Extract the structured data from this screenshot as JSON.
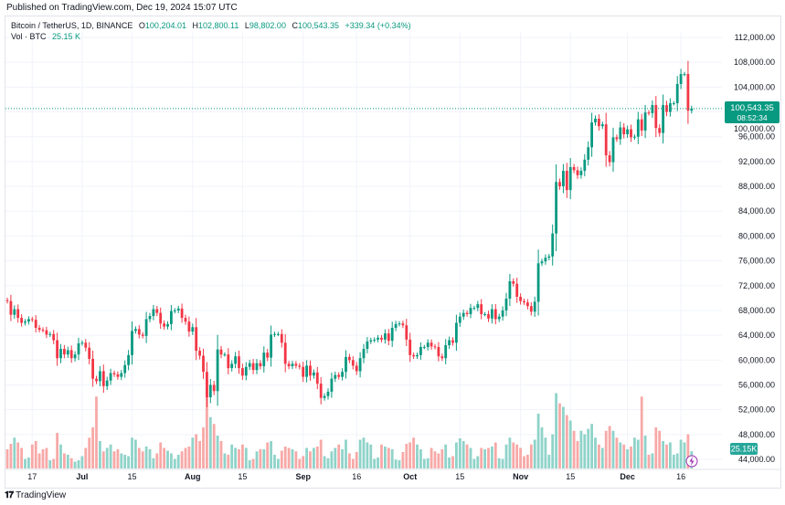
{
  "published": "Published on TradingView.com, Dec 19, 2024 15:07 UTC",
  "legend": {
    "symbol": "Bitcoin / TetherUS, 1D, BINANCE",
    "o_label": "O",
    "o": "100,204.01",
    "h_label": "H",
    "h": "102,800.11",
    "l_label": "L",
    "l": "98,802.00",
    "c_label": "C",
    "c": "100,543.35",
    "change": "+339.34 (+0.34%)",
    "vol_label": "Vol · BTC",
    "vol": "25.15 K"
  },
  "price_label": {
    "price": "100,543.35",
    "countdown": "08:52:34"
  },
  "volume_label": "25.15K",
  "footer_logo": "TradingView",
  "colors": {
    "up": "#089981",
    "down": "#f23645",
    "vol_up": "#8fd3c9",
    "vol_down": "#f7a9a7",
    "grid": "#f0f3fa",
    "alert": "#9c27b0"
  },
  "chart_data": {
    "type": "candlestick",
    "symbol": "BTCUSDT",
    "interval": "1D",
    "x_start": "2024-06-10",
    "ylim": [
      44000,
      112000
    ],
    "y_ticks": [
      "112,000.00",
      "108,000.00",
      "104,000.00",
      "100,000.00",
      "96,000.00",
      "92,000.00",
      "88,000.00",
      "84,000.00",
      "80,000.00",
      "76,000.00",
      "72,000.00",
      "68,000.00",
      "64,000.00",
      "60,000.00",
      "56,000.00",
      "52,000.00",
      "48,000.00",
      "44,000.00"
    ],
    "x_ticks": [
      {
        "label": "17",
        "date": "2024-06-17"
      },
      {
        "label": "Jul",
        "date": "2024-07-01"
      },
      {
        "label": "15",
        "date": "2024-07-15"
      },
      {
        "label": "Aug",
        "date": "2024-08-01"
      },
      {
        "label": "15",
        "date": "2024-08-15"
      },
      {
        "label": "Sep",
        "date": "2024-09-01"
      },
      {
        "label": "16",
        "date": "2024-09-16"
      },
      {
        "label": "Oct",
        "date": "2024-10-01"
      },
      {
        "label": "15",
        "date": "2024-10-15"
      },
      {
        "label": "Nov",
        "date": "2024-11-01"
      },
      {
        "label": "15",
        "date": "2024-11-15"
      },
      {
        "label": "Dec",
        "date": "2024-12-01"
      },
      {
        "label": "16",
        "date": "2024-12-16"
      }
    ],
    "grid": true,
    "first_open": 69650,
    "last_price": 100543.35,
    "close": [
      69500,
      67300,
      68200,
      66800,
      66000,
      66200,
      66600,
      66500,
      65200,
      64900,
      64800,
      64100,
      64200,
      63200,
      60300,
      61800,
      60900,
      61600,
      60300,
      60900,
      62700,
      62800,
      62000,
      60200,
      57000,
      56600,
      58200,
      55800,
      56700,
      57900,
      57700,
      57300,
      57900,
      59200,
      60800,
      64700,
      65000,
      64100,
      63900,
      66600,
      67100,
      68200,
      67600,
      65900,
      65400,
      65800,
      67900,
      68000,
      68300,
      66800,
      66200,
      64600,
      65300,
      61500,
      60700,
      58100,
      54000,
      56000,
      55000,
      61700,
      60900,
      60900,
      58700,
      59400,
      60600,
      58700,
      57500,
      58900,
      59500,
      58400,
      59500,
      59000,
      61200,
      60400,
      64100,
      64200,
      64200,
      62800,
      59400,
      59000,
      59400,
      59100,
      58900,
      57300,
      59100,
      57500,
      58000,
      56200,
      53900,
      54200,
      54900,
      57000,
      57600,
      57300,
      58100,
      60500,
      60000,
      59100,
      58200,
      60300,
      61800,
      63000,
      63200,
      63300,
      63600,
      63300,
      64300,
      63100,
      65200,
      65800,
      65900,
      65600,
      63300,
      60800,
      60600,
      60800,
      62100,
      62100,
      62800,
      62200,
      62100,
      60600,
      60300,
      62400,
      63200,
      62800,
      66000,
      67000,
      67600,
      67400,
      68400,
      68400,
      69000,
      67400,
      67400,
      66700,
      68200,
      66600,
      67000,
      68000,
      69900,
      72700,
      72300,
      70200,
      69500,
      69300,
      68700,
      67800,
      69400,
      75600,
      75900,
      76500,
      76700,
      80400,
      88700,
      88000,
      90500,
      87400,
      91100,
      90600,
      89800,
      90500,
      92300,
      94300,
      98300,
      98900,
      97700,
      98000,
      93000,
      91900,
      95900,
      95600,
      97500,
      96400,
      97200,
      95900,
      96000,
      98800,
      97000,
      99900,
      99800,
      101100,
      97400,
      96600,
      101100,
      100000,
      101400,
      101400,
      104500,
      106100,
      106100,
      100200,
      100543.35
    ],
    "volume_k": [
      28,
      36,
      45,
      38,
      30,
      14,
      16,
      35,
      40,
      22,
      28,
      30,
      12,
      14,
      52,
      35,
      22,
      20,
      15,
      10,
      12,
      18,
      30,
      45,
      60,
      105,
      40,
      25,
      30,
      35,
      25,
      28,
      22,
      20,
      18,
      45,
      42,
      30,
      25,
      32,
      28,
      15,
      22,
      38,
      30,
      26,
      22,
      14,
      20,
      25,
      30,
      32,
      45,
      50,
      40,
      60,
      130,
      75,
      65,
      48,
      40,
      22,
      20,
      35,
      30,
      28,
      35,
      30,
      12,
      14,
      25,
      28,
      28,
      38,
      40,
      20,
      14,
      26,
      32,
      30,
      28,
      25,
      14,
      18,
      30,
      25,
      30,
      32,
      42,
      18,
      15,
      25,
      30,
      35,
      28,
      42,
      22,
      14,
      24,
      42,
      45,
      38,
      35,
      14,
      16,
      35,
      32,
      30,
      28,
      13,
      12,
      24,
      36,
      38,
      45,
      35,
      28,
      14,
      15,
      30,
      25,
      22,
      28,
      35,
      16,
      18,
      38,
      44,
      40,
      35,
      30,
      14,
      18,
      30,
      28,
      30,
      32,
      38,
      15,
      14,
      35,
      45,
      38,
      35,
      30,
      18,
      20,
      35,
      42,
      80,
      60,
      45,
      20,
      50,
      110,
      95,
      90,
      78,
      70,
      55,
      40,
      55,
      50,
      58,
      65,
      45,
      35,
      30,
      55,
      62,
      55,
      45,
      38,
      35,
      28,
      32,
      45,
      42,
      105,
      48,
      20,
      22,
      60,
      55,
      40,
      35,
      38,
      20,
      22,
      42,
      38,
      50,
      25.15
    ]
  }
}
